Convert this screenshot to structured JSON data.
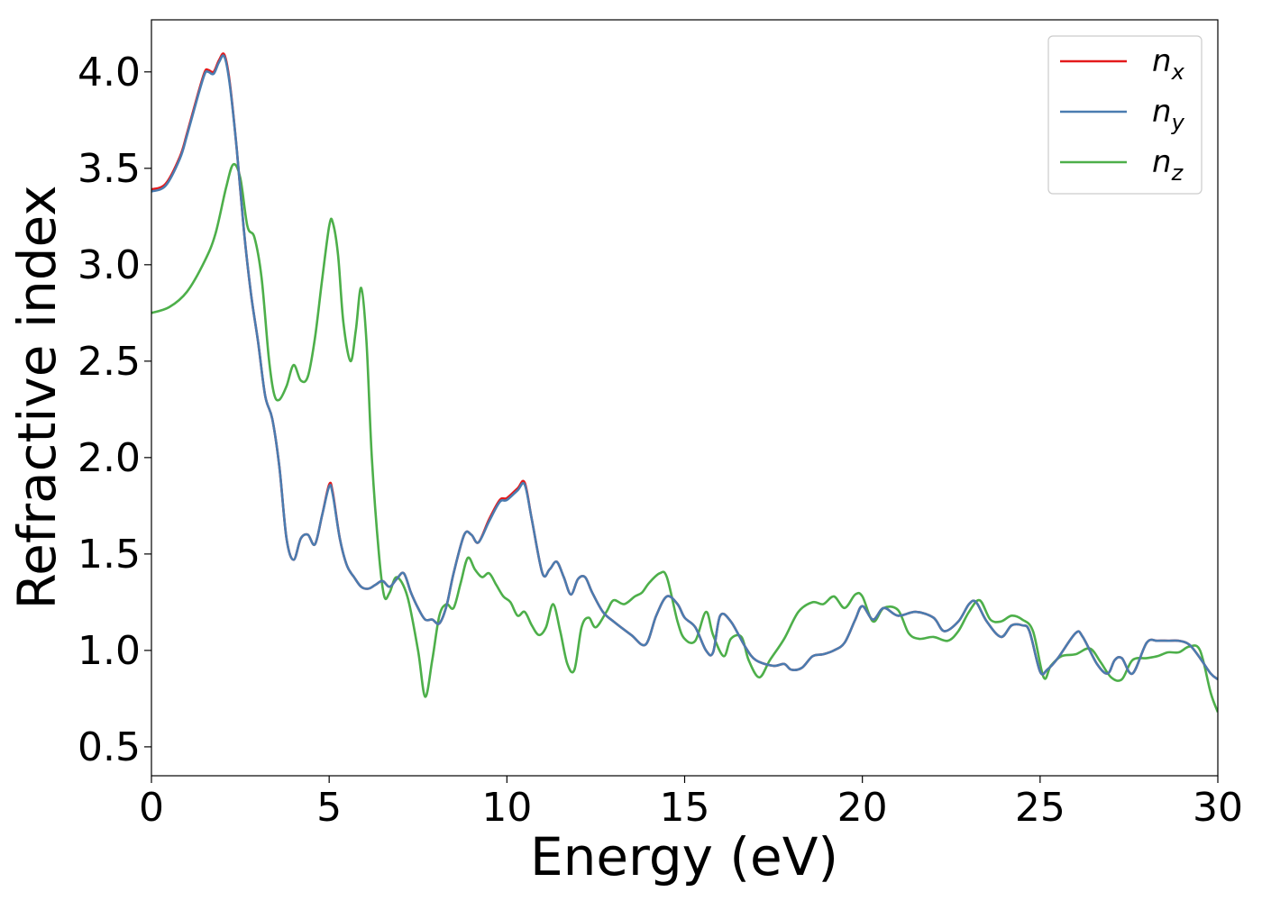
{
  "chart_data": {
    "type": "line",
    "xlabel": "Energy (eV)",
    "ylabel": "Refractive index",
    "xlim": [
      0,
      30
    ],
    "ylim": [
      0.35,
      4.27
    ],
    "xticks": [
      0,
      5,
      10,
      15,
      20,
      25,
      30
    ],
    "yticks": [
      0.5,
      1.0,
      1.5,
      2.0,
      2.5,
      3.0,
      3.5,
      4.0
    ],
    "xtick_labels": [
      "0",
      "5",
      "10",
      "15",
      "20",
      "25",
      "30"
    ],
    "ytick_labels": [
      "0.5",
      "1.0",
      "1.5",
      "2.0",
      "2.5",
      "3.0",
      "3.5",
      "4.0"
    ],
    "grid": false,
    "legend_position": "top-right",
    "series": [
      {
        "name": "n_x",
        "label_main": "n",
        "label_sub": "x",
        "color": "#e41a1c",
        "x": [
          0,
          0.4,
          0.8,
          1.0,
          1.3,
          1.5,
          1.6,
          1.75,
          1.9,
          2.05,
          2.2,
          2.4,
          2.6,
          2.8,
          3.0,
          3.2,
          3.4,
          3.6,
          3.8,
          4.0,
          4.2,
          4.4,
          4.6,
          4.8,
          5.0,
          5.1,
          5.3,
          5.5,
          5.7,
          5.9,
          6.1,
          6.3,
          6.5,
          6.7,
          6.9,
          7.1,
          7.3,
          7.5,
          7.7,
          7.9,
          8.1,
          8.3,
          8.5,
          8.8,
          9.0,
          9.2,
          9.5,
          9.8,
          10.0,
          10.3,
          10.5,
          10.7,
          11.0,
          11.2,
          11.4,
          11.6,
          11.8,
          12.0,
          12.2,
          12.4,
          12.7,
          13.0,
          13.5,
          13.9,
          14.2,
          14.5,
          14.8,
          15.0,
          15.3,
          15.6,
          15.8,
          16.0,
          16.3,
          16.7,
          17.0,
          17.5,
          17.8,
          18.0,
          18.3,
          18.6,
          18.9,
          19.2,
          19.5,
          19.8,
          20.0,
          20.3,
          20.6,
          21.0,
          21.5,
          22.0,
          22.3,
          22.7,
          23.0,
          23.2,
          23.5,
          23.9,
          24.2,
          24.5,
          24.7,
          25.0,
          25.2,
          25.5,
          26.0,
          26.2,
          26.6,
          26.9,
          27.1,
          27.3,
          27.6,
          28.0,
          28.3,
          28.6,
          28.9,
          29.2,
          29.5,
          29.8,
          30.0
        ],
        "y": [
          3.39,
          3.42,
          3.56,
          3.68,
          3.88,
          4.0,
          4.01,
          4.0,
          4.06,
          4.09,
          3.95,
          3.6,
          3.18,
          2.85,
          2.6,
          2.32,
          2.2,
          1.95,
          1.58,
          1.47,
          1.58,
          1.6,
          1.55,
          1.7,
          1.86,
          1.82,
          1.58,
          1.44,
          1.38,
          1.33,
          1.32,
          1.34,
          1.36,
          1.33,
          1.37,
          1.4,
          1.3,
          1.22,
          1.16,
          1.16,
          1.14,
          1.23,
          1.4,
          1.6,
          1.6,
          1.56,
          1.68,
          1.78,
          1.79,
          1.84,
          1.87,
          1.68,
          1.4,
          1.42,
          1.46,
          1.38,
          1.29,
          1.37,
          1.38,
          1.3,
          1.2,
          1.15,
          1.08,
          1.03,
          1.18,
          1.28,
          1.24,
          1.17,
          1.12,
          1.0,
          0.99,
          1.18,
          1.15,
          1.02,
          0.95,
          0.92,
          0.93,
          0.9,
          0.91,
          0.97,
          0.98,
          1.0,
          1.04,
          1.16,
          1.23,
          1.16,
          1.22,
          1.18,
          1.2,
          1.17,
          1.1,
          1.15,
          1.24,
          1.25,
          1.15,
          1.07,
          1.13,
          1.13,
          1.1,
          0.89,
          0.9,
          0.96,
          1.09,
          1.07,
          0.93,
          0.88,
          0.95,
          0.96,
          0.88,
          1.04,
          1.05,
          1.05,
          1.05,
          1.03,
          0.96,
          0.88,
          0.85
        ]
      },
      {
        "name": "n_y",
        "label_main": "n",
        "label_sub": "y",
        "color": "#4a7cb0",
        "x": [
          0,
          0.4,
          0.8,
          1.0,
          1.3,
          1.5,
          1.6,
          1.75,
          1.9,
          2.05,
          2.2,
          2.4,
          2.6,
          2.8,
          3.0,
          3.2,
          3.4,
          3.6,
          3.8,
          4.0,
          4.2,
          4.4,
          4.6,
          4.8,
          5.0,
          5.1,
          5.3,
          5.5,
          5.7,
          5.9,
          6.1,
          6.3,
          6.5,
          6.7,
          6.9,
          7.1,
          7.3,
          7.5,
          7.7,
          7.9,
          8.1,
          8.3,
          8.5,
          8.8,
          9.0,
          9.2,
          9.5,
          9.8,
          10.0,
          10.3,
          10.5,
          10.7,
          11.0,
          11.2,
          11.4,
          11.6,
          11.8,
          12.0,
          12.2,
          12.4,
          12.7,
          13.0,
          13.5,
          13.9,
          14.2,
          14.5,
          14.8,
          15.0,
          15.3,
          15.6,
          15.8,
          16.0,
          16.3,
          16.7,
          17.0,
          17.5,
          17.8,
          18.0,
          18.3,
          18.6,
          18.9,
          19.2,
          19.5,
          19.8,
          20.0,
          20.3,
          20.6,
          21.0,
          21.5,
          22.0,
          22.3,
          22.7,
          23.0,
          23.2,
          23.5,
          23.9,
          24.2,
          24.5,
          24.7,
          25.0,
          25.2,
          25.5,
          26.0,
          26.2,
          26.6,
          26.9,
          27.1,
          27.3,
          27.6,
          28.0,
          28.3,
          28.6,
          28.9,
          29.2,
          29.5,
          29.8,
          30.0
        ],
        "y": [
          3.38,
          3.41,
          3.55,
          3.67,
          3.87,
          3.99,
          4.0,
          3.99,
          4.05,
          4.08,
          3.94,
          3.6,
          3.18,
          2.85,
          2.6,
          2.32,
          2.2,
          1.95,
          1.58,
          1.47,
          1.58,
          1.6,
          1.55,
          1.7,
          1.85,
          1.81,
          1.58,
          1.44,
          1.38,
          1.33,
          1.32,
          1.34,
          1.36,
          1.33,
          1.37,
          1.4,
          1.3,
          1.22,
          1.16,
          1.16,
          1.14,
          1.23,
          1.4,
          1.6,
          1.6,
          1.56,
          1.67,
          1.77,
          1.78,
          1.83,
          1.86,
          1.68,
          1.4,
          1.42,
          1.46,
          1.38,
          1.29,
          1.37,
          1.38,
          1.3,
          1.2,
          1.15,
          1.08,
          1.03,
          1.18,
          1.28,
          1.24,
          1.17,
          1.12,
          1.0,
          0.99,
          1.18,
          1.15,
          1.02,
          0.95,
          0.92,
          0.93,
          0.9,
          0.91,
          0.97,
          0.98,
          1.0,
          1.04,
          1.16,
          1.23,
          1.16,
          1.22,
          1.18,
          1.2,
          1.17,
          1.1,
          1.15,
          1.24,
          1.25,
          1.15,
          1.07,
          1.13,
          1.13,
          1.1,
          0.89,
          0.9,
          0.96,
          1.09,
          1.07,
          0.93,
          0.88,
          0.95,
          0.96,
          0.88,
          1.04,
          1.05,
          1.05,
          1.05,
          1.03,
          0.96,
          0.88,
          0.85
        ]
      },
      {
        "name": "n_z",
        "label_main": "n",
        "label_sub": "z",
        "color": "#4daf4a",
        "x": [
          0,
          0.5,
          1.0,
          1.5,
          1.8,
          2.1,
          2.3,
          2.5,
          2.7,
          2.9,
          3.1,
          3.3,
          3.45,
          3.6,
          3.8,
          4.0,
          4.2,
          4.4,
          4.6,
          4.8,
          5.0,
          5.1,
          5.25,
          5.4,
          5.6,
          5.75,
          5.9,
          6.05,
          6.2,
          6.4,
          6.55,
          6.7,
          6.9,
          7.2,
          7.5,
          7.7,
          7.9,
          8.1,
          8.3,
          8.5,
          8.7,
          8.9,
          9.1,
          9.3,
          9.5,
          9.7,
          9.9,
          10.1,
          10.3,
          10.5,
          10.7,
          10.9,
          11.1,
          11.3,
          11.5,
          11.7,
          11.9,
          12.1,
          12.3,
          12.5,
          12.8,
          13.0,
          13.3,
          13.6,
          13.8,
          14.0,
          14.3,
          14.5,
          14.8,
          15.0,
          15.3,
          15.6,
          15.8,
          16.1,
          16.3,
          16.6,
          16.8,
          17.1,
          17.4,
          17.8,
          18.2,
          18.6,
          18.9,
          19.2,
          19.5,
          19.8,
          20.0,
          20.3,
          20.6,
          21.0,
          21.3,
          21.6,
          22.0,
          22.4,
          22.7,
          23.0,
          23.3,
          23.6,
          23.9,
          24.2,
          24.5,
          24.8,
          25.1,
          25.3,
          25.6,
          26.0,
          26.4,
          26.7,
          27.0,
          27.3,
          27.6,
          28.0,
          28.3,
          28.6,
          28.9,
          29.2,
          29.5,
          29.8,
          30.0
        ],
        "y": [
          2.75,
          2.78,
          2.86,
          3.02,
          3.16,
          3.4,
          3.52,
          3.45,
          3.2,
          3.14,
          2.93,
          2.52,
          2.33,
          2.3,
          2.37,
          2.48,
          2.4,
          2.42,
          2.62,
          2.92,
          3.2,
          3.22,
          3.05,
          2.7,
          2.5,
          2.66,
          2.88,
          2.6,
          2.0,
          1.5,
          1.28,
          1.3,
          1.38,
          1.28,
          1.0,
          0.76,
          0.95,
          1.18,
          1.24,
          1.22,
          1.35,
          1.48,
          1.42,
          1.38,
          1.4,
          1.34,
          1.28,
          1.25,
          1.18,
          1.2,
          1.13,
          1.08,
          1.12,
          1.24,
          1.1,
          0.93,
          0.9,
          1.12,
          1.17,
          1.12,
          1.2,
          1.26,
          1.24,
          1.28,
          1.3,
          1.35,
          1.4,
          1.38,
          1.15,
          1.06,
          1.05,
          1.2,
          1.08,
          0.97,
          1.06,
          1.07,
          0.95,
          0.86,
          0.95,
          1.06,
          1.2,
          1.25,
          1.24,
          1.28,
          1.22,
          1.29,
          1.28,
          1.15,
          1.22,
          1.21,
          1.09,
          1.06,
          1.07,
          1.05,
          1.1,
          1.2,
          1.26,
          1.16,
          1.15,
          1.18,
          1.16,
          1.1,
          0.86,
          0.92,
          0.97,
          0.98,
          1.01,
          0.94,
          0.86,
          0.85,
          0.95,
          0.96,
          0.97,
          0.99,
          0.99,
          1.02,
          1.0,
          0.78,
          0.68
        ]
      }
    ]
  }
}
